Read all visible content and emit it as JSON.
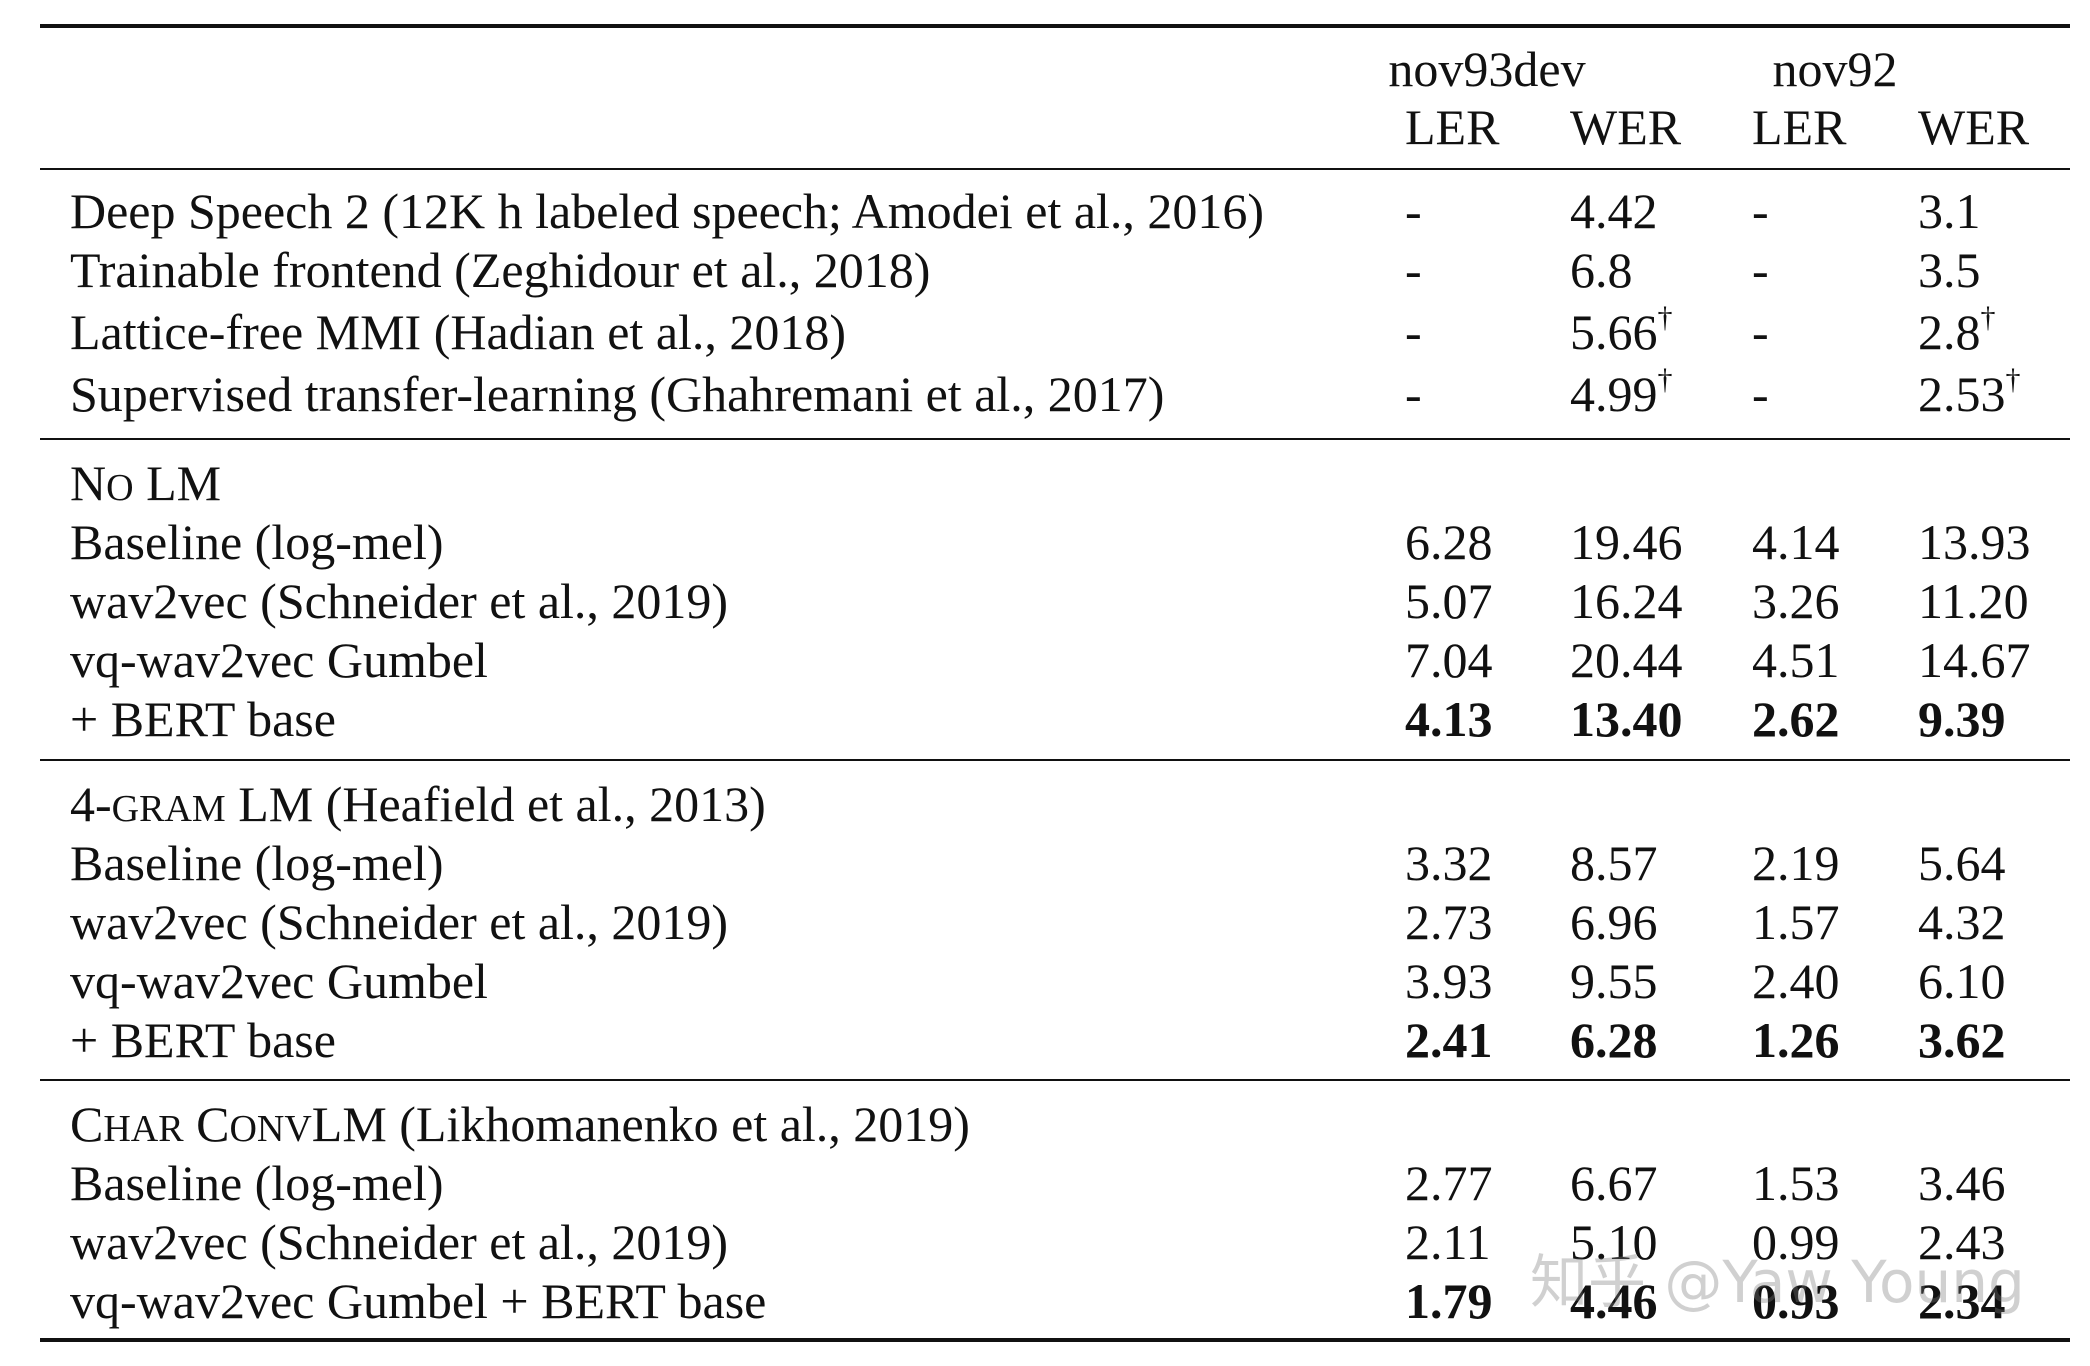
{
  "header": {
    "groups": [
      "nov93dev",
      "nov92"
    ],
    "columns": [
      "LER",
      "WER",
      "LER",
      "WER"
    ]
  },
  "prior_work": [
    {
      "name": "Deep Speech 2 (12K h labeled speech; Amodei et al., 2016)",
      "values": [
        "-",
        "4.42",
        "-",
        "3.1"
      ],
      "dagger": [
        false,
        false,
        false,
        false
      ]
    },
    {
      "name": "Trainable frontend (Zeghidour et al., 2018)",
      "values": [
        "-",
        "6.8",
        "-",
        "3.5"
      ],
      "dagger": [
        false,
        false,
        false,
        false
      ]
    },
    {
      "name": "Lattice-free MMI (Hadian et al., 2018)",
      "values": [
        "-",
        "5.66",
        "-",
        "2.8"
      ],
      "dagger": [
        false,
        true,
        false,
        true
      ]
    },
    {
      "name": "Supervised transfer-learning (Ghahremani et al., 2017)",
      "values": [
        "-",
        "4.99",
        "-",
        "2.53"
      ],
      "dagger": [
        false,
        true,
        false,
        true
      ]
    }
  ],
  "dagger_symbol": "†",
  "sections": [
    {
      "title_parts": [
        {
          "t": "N",
          "s": "big"
        },
        {
          "t": "O",
          "s": "small"
        },
        {
          "t": " LM",
          "s": "big"
        }
      ],
      "rows": [
        {
          "name": "Baseline (log-mel)",
          "values": [
            "6.28",
            "19.46",
            "4.14",
            "13.93"
          ],
          "bold": false
        },
        {
          "name": "wav2vec (Schneider et al., 2019)",
          "values": [
            "5.07",
            "16.24",
            "3.26",
            "11.20"
          ],
          "bold": false
        },
        {
          "name": "vq-wav2vec Gumbel",
          "values": [
            "7.04",
            "20.44",
            "4.51",
            "14.67"
          ],
          "bold": false
        },
        {
          "name": "+ BERT base",
          "values": [
            "4.13",
            "13.40",
            "2.62",
            "9.39"
          ],
          "bold": true
        }
      ]
    },
    {
      "title_parts": [
        {
          "t": "4-",
          "s": "big"
        },
        {
          "t": "GRAM",
          "s": "small"
        },
        {
          "t": " LM (Heafield et al., 2013)",
          "s": "big"
        }
      ],
      "rows": [
        {
          "name": "Baseline (log-mel)",
          "values": [
            "3.32",
            "8.57",
            "2.19",
            "5.64"
          ],
          "bold": false
        },
        {
          "name": "wav2vec (Schneider et al., 2019)",
          "values": [
            "2.73",
            "6.96",
            "1.57",
            "4.32"
          ],
          "bold": false
        },
        {
          "name": "vq-wav2vec Gumbel",
          "values": [
            "3.93",
            "9.55",
            "2.40",
            "6.10"
          ],
          "bold": false
        },
        {
          "name": "+ BERT base",
          "values": [
            "2.41",
            "6.28",
            "1.26",
            "3.62"
          ],
          "bold": true
        }
      ]
    },
    {
      "title_parts": [
        {
          "t": "C",
          "s": "big"
        },
        {
          "t": "HAR",
          "s": "small"
        },
        {
          "t": " C",
          "s": "big"
        },
        {
          "t": "ONV",
          "s": "small"
        },
        {
          "t": "LM (Likhomanenko et al., 2019)",
          "s": "big"
        }
      ],
      "rows": [
        {
          "name": "Baseline (log-mel)",
          "values": [
            "2.77",
            "6.67",
            "1.53",
            "3.46"
          ],
          "bold": false
        },
        {
          "name": "wav2vec (Schneider et al., 2019)",
          "values": [
            "2.11",
            "5.10",
            "0.99",
            "2.43"
          ],
          "bold": false
        },
        {
          "name": "vq-wav2vec Gumbel + BERT base",
          "values": [
            "1.79",
            "4.46",
            "0.93",
            "2.34"
          ],
          "bold": true
        }
      ]
    }
  ],
  "watermark": "知乎 @Yaw Young"
}
